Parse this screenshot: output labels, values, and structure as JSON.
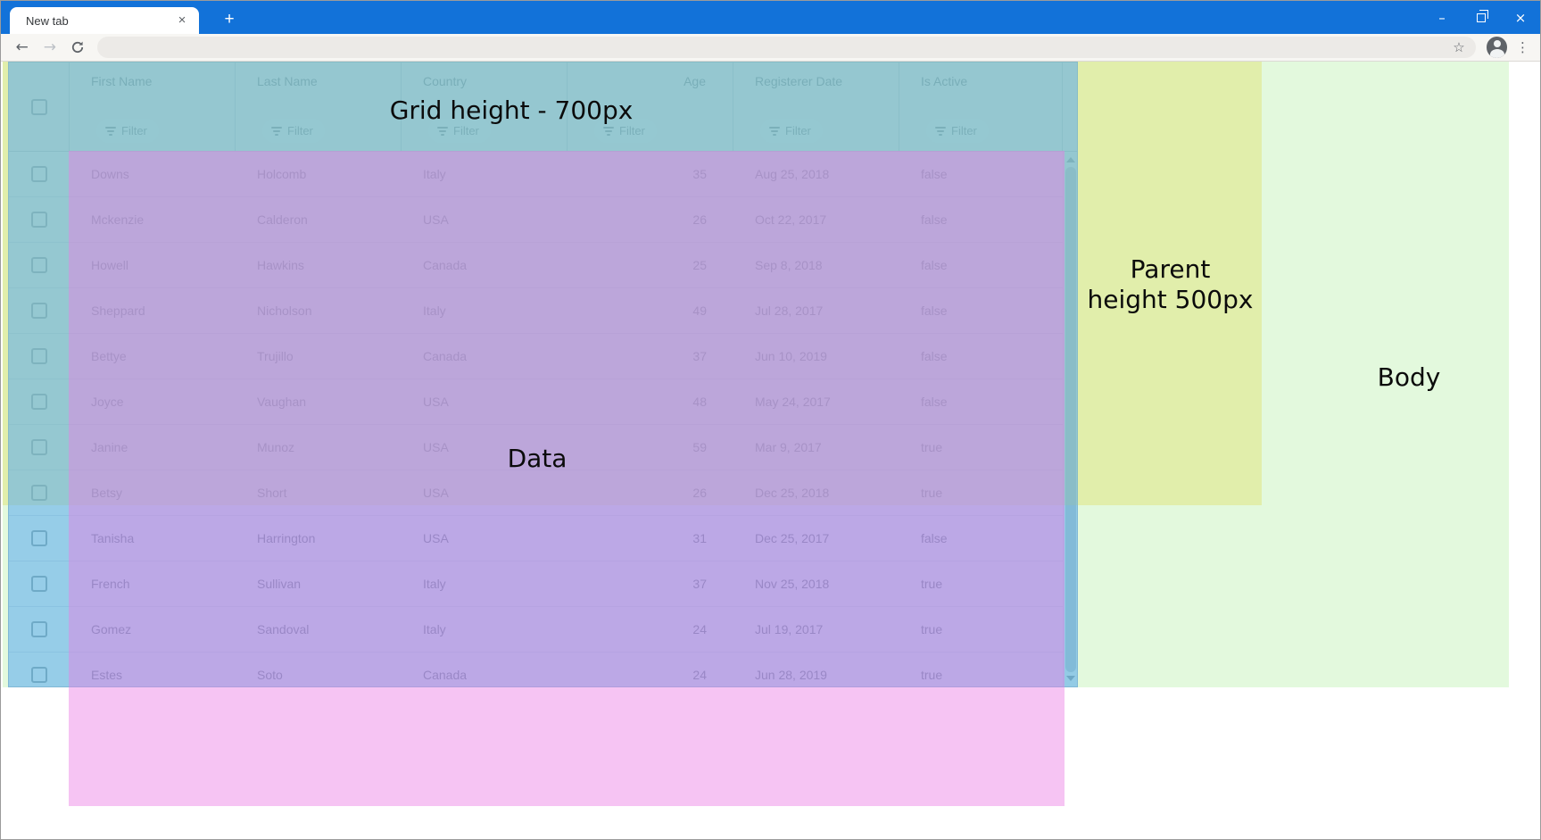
{
  "browser": {
    "tab_title": "New tab",
    "tab_close_icon": "×",
    "new_tab_icon": "+",
    "window_controls": {
      "minimize_icon": "–",
      "close_icon": "×"
    },
    "toolbar": {
      "back_icon": "←",
      "forward_icon": "→",
      "address_value": "",
      "star_icon": "☆",
      "menu_icon": "⋮"
    }
  },
  "grid": {
    "columns": [
      {
        "label": "First Name",
        "align": "left"
      },
      {
        "label": "Last Name",
        "align": "left"
      },
      {
        "label": "Country",
        "align": "left"
      },
      {
        "label": "Age",
        "align": "right"
      },
      {
        "label": "Registerer Date",
        "align": "left"
      },
      {
        "label": "Is Active",
        "align": "left"
      }
    ],
    "filter_label": "Filter",
    "rows": [
      [
        "Downs",
        "Holcomb",
        "Italy",
        "35",
        "Aug 25, 2018",
        "false"
      ],
      [
        "Mckenzie",
        "Calderon",
        "USA",
        "26",
        "Oct 22, 2017",
        "false"
      ],
      [
        "Howell",
        "Hawkins",
        "Canada",
        "25",
        "Sep 8, 2018",
        "false"
      ],
      [
        "Sheppard",
        "Nicholson",
        "Italy",
        "49",
        "Jul 28, 2017",
        "false"
      ],
      [
        "Bettye",
        "Trujillo",
        "Canada",
        "37",
        "Jun 10, 2019",
        "false"
      ],
      [
        "Joyce",
        "Vaughan",
        "USA",
        "48",
        "May 24, 2017",
        "false"
      ],
      [
        "Janine",
        "Munoz",
        "USA",
        "59",
        "Mar 9, 2017",
        "true"
      ],
      [
        "Betsy",
        "Short",
        "USA",
        "26",
        "Dec 25, 2018",
        "true"
      ],
      [
        "Tanisha",
        "Harrington",
        "USA",
        "31",
        "Dec 25, 2017",
        "false"
      ],
      [
        "French",
        "Sullivan",
        "Italy",
        "37",
        "Nov 25, 2018",
        "true"
      ],
      [
        "Gomez",
        "Sandoval",
        "Italy",
        "24",
        "Jul 19, 2017",
        "true"
      ],
      [
        "Estes",
        "Soto",
        "Canada",
        "24",
        "Jun 28, 2019",
        "true"
      ]
    ]
  },
  "overlays": {
    "grid_label": "Grid height - 700px",
    "data_label": "Data",
    "parent_label_line1": "Parent",
    "parent_label_line2": "height 500px",
    "body_label": "Body",
    "colors": {
      "chrome_blue": "#1272d9",
      "grid_overlay": "rgba(88,170,240,0.55)",
      "data_overlay": "rgba(235,124,229,0.45)",
      "parent_overlay": "rgba(223,223,97,0.40)",
      "body_overlay": "rgba(143,231,119,0.25)"
    }
  }
}
